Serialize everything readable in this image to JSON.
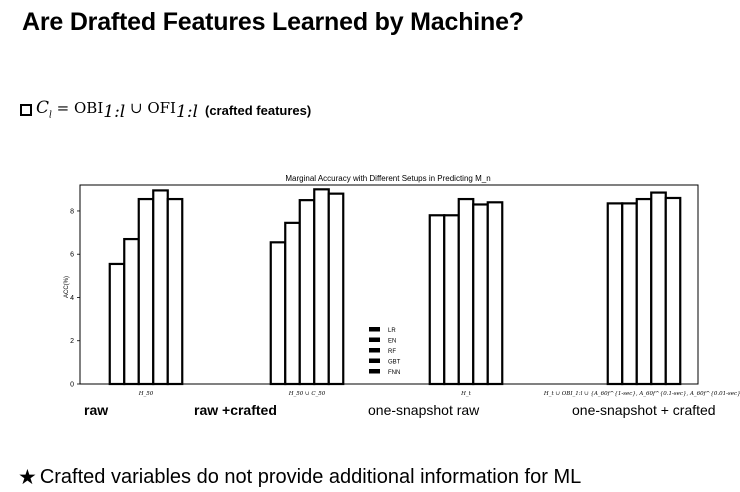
{
  "slide": {
    "title": "Are Drafted Features Learned by Machine?",
    "bullet_note": "(crafted features)",
    "footer": "Crafted variables do not provide additional information for ML"
  },
  "icons": {
    "bullet": "square-box-icon",
    "footer": "star-icon"
  },
  "setup_labels": [
    "raw",
    "raw +crafted",
    "one-snapshot raw",
    "one-snapshot + crafted"
  ],
  "chart_data": {
    "type": "bar",
    "title": "Marginal Accuracy with Different Setups in Predicting M_n",
    "xlabel": "",
    "ylabel": "ACC(%)",
    "ylim": [
      0,
      9.2
    ],
    "yticks": [
      0,
      2,
      4,
      6,
      8
    ],
    "categories": [
      "H_50",
      "H_50 ∪ C_50",
      "H_t",
      "H_t ∪ OBI_1:l ∪ {A_60f^{1-sec}, A_60f^{0.1-sec}, A_60f^{0.01-sec}}"
    ],
    "series": [
      {
        "name": "LR",
        "values": [
          5.55,
          6.55,
          7.8,
          8.35
        ]
      },
      {
        "name": "EN",
        "values": [
          6.7,
          7.45,
          7.8,
          8.35
        ]
      },
      {
        "name": "RF",
        "values": [
          8.55,
          8.5,
          8.55,
          8.55
        ]
      },
      {
        "name": "GBT",
        "values": [
          8.95,
          9.0,
          8.3,
          8.85
        ]
      },
      {
        "name": "FNN",
        "values": [
          8.55,
          8.8,
          8.4,
          8.6
        ]
      }
    ],
    "grid": false,
    "legend": "center",
    "colors": {
      "bar_fill": "#ffffff",
      "bar_edge": "#000000"
    }
  }
}
